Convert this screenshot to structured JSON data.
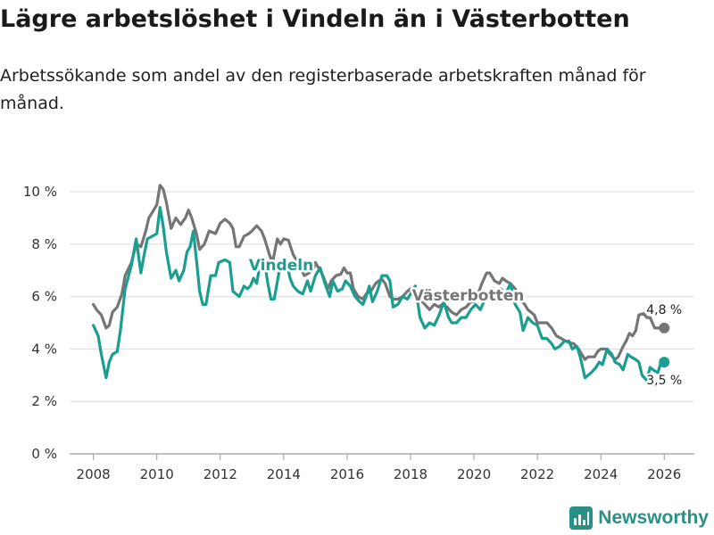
{
  "chart_data": {
    "type": "line",
    "title": "Lägre arbetslöshet i Vindeln än i Västerbotten",
    "subtitle": "Arbetssökande som andel av den registerbaserade arbetskraften månad för månad.",
    "xlabel": "",
    "ylabel": "",
    "xlim": [
      2007.25,
      2026.95
    ],
    "ylim": [
      0,
      10
    ],
    "y_ticks": [
      0,
      2,
      4,
      6,
      8,
      10
    ],
    "y_tick_labels": [
      "0 %",
      "2 %",
      "4 %",
      "6 %",
      "8 %",
      "10 %"
    ],
    "x_ticks": [
      2008,
      2010,
      2012,
      2014,
      2016,
      2018,
      2020,
      2022,
      2024,
      2026
    ],
    "x_tick_labels": [
      "2008",
      "2010",
      "2012",
      "2014",
      "2016",
      "2018",
      "2020",
      "2022",
      "2024",
      "2026"
    ],
    "grid": true,
    "series": [
      {
        "name": "Västerbotten",
        "label": "Västerbotten",
        "color": "#757575",
        "end_value": 4.8,
        "end_label": "4,8 %",
        "end_x": 2026.0,
        "points": [
          [
            2008.0,
            5.7
          ],
          [
            2008.1,
            5.5
          ],
          [
            2008.25,
            5.3
          ],
          [
            2008.4,
            4.8
          ],
          [
            2008.5,
            4.9
          ],
          [
            2008.6,
            5.4
          ],
          [
            2008.75,
            5.6
          ],
          [
            2008.9,
            6.1
          ],
          [
            2009.0,
            6.8
          ],
          [
            2009.2,
            7.3
          ],
          [
            2009.35,
            8.0
          ],
          [
            2009.5,
            7.9
          ],
          [
            2009.65,
            8.5
          ],
          [
            2009.75,
            9.0
          ],
          [
            2009.9,
            9.3
          ],
          [
            2010.0,
            9.5
          ],
          [
            2010.1,
            10.25
          ],
          [
            2010.2,
            10.1
          ],
          [
            2010.3,
            9.6
          ],
          [
            2010.45,
            8.6
          ],
          [
            2010.6,
            9.0
          ],
          [
            2010.75,
            8.75
          ],
          [
            2010.9,
            9.0
          ],
          [
            2011.0,
            9.3
          ],
          [
            2011.1,
            9.0
          ],
          [
            2011.25,
            8.4
          ],
          [
            2011.35,
            7.8
          ],
          [
            2011.5,
            8.0
          ],
          [
            2011.65,
            8.5
          ],
          [
            2011.85,
            8.4
          ],
          [
            2012.0,
            8.8
          ],
          [
            2012.15,
            8.95
          ],
          [
            2012.3,
            8.8
          ],
          [
            2012.4,
            8.6
          ],
          [
            2012.5,
            7.9
          ],
          [
            2012.6,
            7.9
          ],
          [
            2012.75,
            8.3
          ],
          [
            2012.9,
            8.4
          ],
          [
            2013.0,
            8.5
          ],
          [
            2013.15,
            8.7
          ],
          [
            2013.3,
            8.5
          ],
          [
            2013.4,
            8.2
          ],
          [
            2013.55,
            7.6
          ],
          [
            2013.65,
            7.3
          ],
          [
            2013.8,
            8.2
          ],
          [
            2013.9,
            8.0
          ],
          [
            2014.0,
            8.2
          ],
          [
            2014.15,
            8.15
          ],
          [
            2014.3,
            7.6
          ],
          [
            2014.5,
            7.2
          ],
          [
            2014.65,
            6.8
          ],
          [
            2014.8,
            6.9
          ],
          [
            2014.95,
            7.1
          ],
          [
            2015.0,
            7.3
          ],
          [
            2015.1,
            7.1
          ],
          [
            2015.2,
            6.9
          ],
          [
            2015.4,
            6.3
          ],
          [
            2015.5,
            6.6
          ],
          [
            2015.65,
            6.8
          ],
          [
            2015.8,
            6.85
          ],
          [
            2015.9,
            7.1
          ],
          [
            2016.0,
            6.9
          ],
          [
            2016.1,
            6.9
          ],
          [
            2016.2,
            6.3
          ],
          [
            2016.35,
            6.0
          ],
          [
            2016.5,
            5.9
          ],
          [
            2016.6,
            6.1
          ],
          [
            2016.75,
            6.2
          ],
          [
            2016.9,
            6.5
          ],
          [
            2017.0,
            6.6
          ],
          [
            2017.1,
            6.65
          ],
          [
            2017.2,
            6.5
          ],
          [
            2017.35,
            6.0
          ],
          [
            2017.45,
            5.9
          ],
          [
            2017.6,
            5.9
          ],
          [
            2017.75,
            6.0
          ],
          [
            2017.9,
            6.2
          ],
          [
            2018.0,
            6.3
          ],
          [
            2018.15,
            6.2
          ],
          [
            2018.3,
            5.9
          ],
          [
            2018.45,
            5.7
          ],
          [
            2018.6,
            5.5
          ],
          [
            2018.75,
            5.7
          ],
          [
            2018.9,
            5.6
          ],
          [
            2019.0,
            5.7
          ],
          [
            2019.15,
            5.6
          ],
          [
            2019.3,
            5.4
          ],
          [
            2019.45,
            5.3
          ],
          [
            2019.6,
            5.5
          ],
          [
            2019.75,
            5.6
          ],
          [
            2019.9,
            5.8
          ],
          [
            2020.0,
            5.8
          ],
          [
            2020.1,
            6.0
          ],
          [
            2020.25,
            6.5
          ],
          [
            2020.4,
            6.9
          ],
          [
            2020.5,
            6.9
          ],
          [
            2020.65,
            6.6
          ],
          [
            2020.8,
            6.5
          ],
          [
            2020.9,
            6.7
          ],
          [
            2021.0,
            6.6
          ],
          [
            2021.15,
            6.5
          ],
          [
            2021.3,
            6.3
          ],
          [
            2021.4,
            6.0
          ],
          [
            2021.6,
            5.7
          ],
          [
            2021.7,
            5.5
          ],
          [
            2021.9,
            5.3
          ],
          [
            2022.0,
            5.0
          ],
          [
            2022.15,
            5.0
          ],
          [
            2022.3,
            5.0
          ],
          [
            2022.45,
            4.8
          ],
          [
            2022.6,
            4.5
          ],
          [
            2022.75,
            4.4
          ],
          [
            2022.9,
            4.3
          ],
          [
            2023.0,
            4.25
          ],
          [
            2023.15,
            4.2
          ],
          [
            2023.3,
            4.0
          ],
          [
            2023.4,
            3.8
          ],
          [
            2023.5,
            3.6
          ],
          [
            2023.6,
            3.7
          ],
          [
            2023.8,
            3.7
          ],
          [
            2023.9,
            3.9
          ],
          [
            2024.0,
            4.0
          ],
          [
            2024.15,
            4.0
          ],
          [
            2024.3,
            3.8
          ],
          [
            2024.45,
            3.6
          ],
          [
            2024.55,
            3.7
          ],
          [
            2024.7,
            4.1
          ],
          [
            2024.8,
            4.3
          ],
          [
            2024.9,
            4.6
          ],
          [
            2025.0,
            4.5
          ],
          [
            2025.1,
            4.7
          ],
          [
            2025.2,
            5.3
          ],
          [
            2025.35,
            5.35
          ],
          [
            2025.45,
            5.2
          ],
          [
            2025.55,
            5.2
          ],
          [
            2025.7,
            4.8
          ],
          [
            2025.85,
            4.8
          ],
          [
            2026.0,
            4.8
          ]
        ]
      },
      {
        "name": "Vindeln",
        "label": "Vindeln",
        "color": "#1a9e8f",
        "end_value": 3.5,
        "end_label": "3,5 %",
        "end_x": 2026.0,
        "points": [
          [
            2008.0,
            4.9
          ],
          [
            2008.15,
            4.5
          ],
          [
            2008.25,
            3.8
          ],
          [
            2008.4,
            2.9
          ],
          [
            2008.5,
            3.5
          ],
          [
            2008.6,
            3.8
          ],
          [
            2008.75,
            3.9
          ],
          [
            2008.85,
            4.7
          ],
          [
            2009.0,
            6.3
          ],
          [
            2009.2,
            7.2
          ],
          [
            2009.35,
            8.2
          ],
          [
            2009.5,
            6.9
          ],
          [
            2009.6,
            7.6
          ],
          [
            2009.7,
            8.2
          ],
          [
            2009.85,
            8.3
          ],
          [
            2010.0,
            8.4
          ],
          [
            2010.1,
            9.4
          ],
          [
            2010.2,
            8.7
          ],
          [
            2010.3,
            7.7
          ],
          [
            2010.45,
            6.7
          ],
          [
            2010.6,
            7.0
          ],
          [
            2010.7,
            6.6
          ],
          [
            2010.85,
            7.0
          ],
          [
            2010.95,
            7.7
          ],
          [
            2011.05,
            7.9
          ],
          [
            2011.15,
            8.5
          ],
          [
            2011.25,
            7.4
          ],
          [
            2011.35,
            6.2
          ],
          [
            2011.45,
            5.7
          ],
          [
            2011.55,
            5.7
          ],
          [
            2011.7,
            6.8
          ],
          [
            2011.85,
            6.8
          ],
          [
            2011.95,
            7.3
          ],
          [
            2012.15,
            7.4
          ],
          [
            2012.3,
            7.3
          ],
          [
            2012.4,
            6.2
          ],
          [
            2012.6,
            6.0
          ],
          [
            2012.75,
            6.4
          ],
          [
            2012.85,
            6.3
          ],
          [
            2012.95,
            6.4
          ],
          [
            2013.05,
            6.7
          ],
          [
            2013.15,
            6.5
          ],
          [
            2013.25,
            7.2
          ],
          [
            2013.4,
            7.3
          ],
          [
            2013.5,
            6.5
          ],
          [
            2013.6,
            5.9
          ],
          [
            2013.7,
            5.9
          ],
          [
            2013.85,
            6.9
          ],
          [
            2014.0,
            7.2
          ],
          [
            2014.1,
            7.25
          ],
          [
            2014.2,
            6.7
          ],
          [
            2014.3,
            6.4
          ],
          [
            2014.45,
            6.2
          ],
          [
            2014.6,
            6.1
          ],
          [
            2014.75,
            6.6
          ],
          [
            2014.85,
            6.2
          ],
          [
            2015.0,
            6.8
          ],
          [
            2015.15,
            7.1
          ],
          [
            2015.3,
            6.5
          ],
          [
            2015.45,
            6.0
          ],
          [
            2015.55,
            6.6
          ],
          [
            2015.7,
            6.2
          ],
          [
            2015.85,
            6.3
          ],
          [
            2015.95,
            6.6
          ],
          [
            2016.1,
            6.4
          ],
          [
            2016.25,
            6.0
          ],
          [
            2016.4,
            5.8
          ],
          [
            2016.5,
            5.7
          ],
          [
            2016.6,
            6.0
          ],
          [
            2016.7,
            6.4
          ],
          [
            2016.8,
            5.8
          ],
          [
            2016.95,
            6.2
          ],
          [
            2017.1,
            6.8
          ],
          [
            2017.25,
            6.8
          ],
          [
            2017.35,
            6.6
          ],
          [
            2017.45,
            5.6
          ],
          [
            2017.6,
            5.7
          ],
          [
            2017.75,
            6.0
          ],
          [
            2017.9,
            5.9
          ],
          [
            2018.0,
            6.1
          ],
          [
            2018.15,
            6.4
          ],
          [
            2018.3,
            5.2
          ],
          [
            2018.45,
            4.8
          ],
          [
            2018.6,
            5.0
          ],
          [
            2018.75,
            4.9
          ],
          [
            2018.9,
            5.3
          ],
          [
            2019.05,
            5.8
          ],
          [
            2019.2,
            5.2
          ],
          [
            2019.3,
            5.0
          ],
          [
            2019.45,
            5.0
          ],
          [
            2019.6,
            5.2
          ],
          [
            2019.75,
            5.2
          ],
          [
            2019.9,
            5.5
          ],
          [
            2020.05,
            5.7
          ],
          [
            2020.2,
            5.5
          ],
          [
            2020.35,
            5.9
          ],
          [
            2020.5,
            6.2
          ],
          [
            2020.6,
            6.3
          ],
          [
            2020.7,
            5.9
          ],
          [
            2020.85,
            6.3
          ],
          [
            2021.0,
            6.1
          ],
          [
            2021.15,
            6.5
          ],
          [
            2021.3,
            5.7
          ],
          [
            2021.45,
            5.4
          ],
          [
            2021.55,
            4.7
          ],
          [
            2021.7,
            5.2
          ],
          [
            2021.85,
            5.0
          ],
          [
            2022.0,
            4.9
          ],
          [
            2022.15,
            4.4
          ],
          [
            2022.3,
            4.4
          ],
          [
            2022.45,
            4.2
          ],
          [
            2022.55,
            4.0
          ],
          [
            2022.7,
            4.1
          ],
          [
            2022.85,
            4.3
          ],
          [
            2023.0,
            4.3
          ],
          [
            2023.1,
            4.0
          ],
          [
            2023.25,
            4.1
          ],
          [
            2023.35,
            3.7
          ],
          [
            2023.5,
            2.9
          ],
          [
            2023.6,
            3.0
          ],
          [
            2023.7,
            3.1
          ],
          [
            2023.85,
            3.3
          ],
          [
            2023.95,
            3.5
          ],
          [
            2024.05,
            3.4
          ],
          [
            2024.2,
            4.0
          ],
          [
            2024.35,
            3.8
          ],
          [
            2024.45,
            3.5
          ],
          [
            2024.6,
            3.4
          ],
          [
            2024.7,
            3.2
          ],
          [
            2024.85,
            3.8
          ],
          [
            2024.95,
            3.7
          ],
          [
            2025.1,
            3.6
          ],
          [
            2025.2,
            3.5
          ],
          [
            2025.3,
            3.0
          ],
          [
            2025.45,
            2.8
          ],
          [
            2025.55,
            3.3
          ],
          [
            2025.65,
            3.2
          ],
          [
            2025.8,
            3.1
          ],
          [
            2025.9,
            3.5
          ],
          [
            2026.0,
            3.5
          ]
        ]
      }
    ]
  },
  "brand": {
    "name": "Newsworthy",
    "logo_icon": "chart-icon",
    "color": "#2a8f86"
  }
}
